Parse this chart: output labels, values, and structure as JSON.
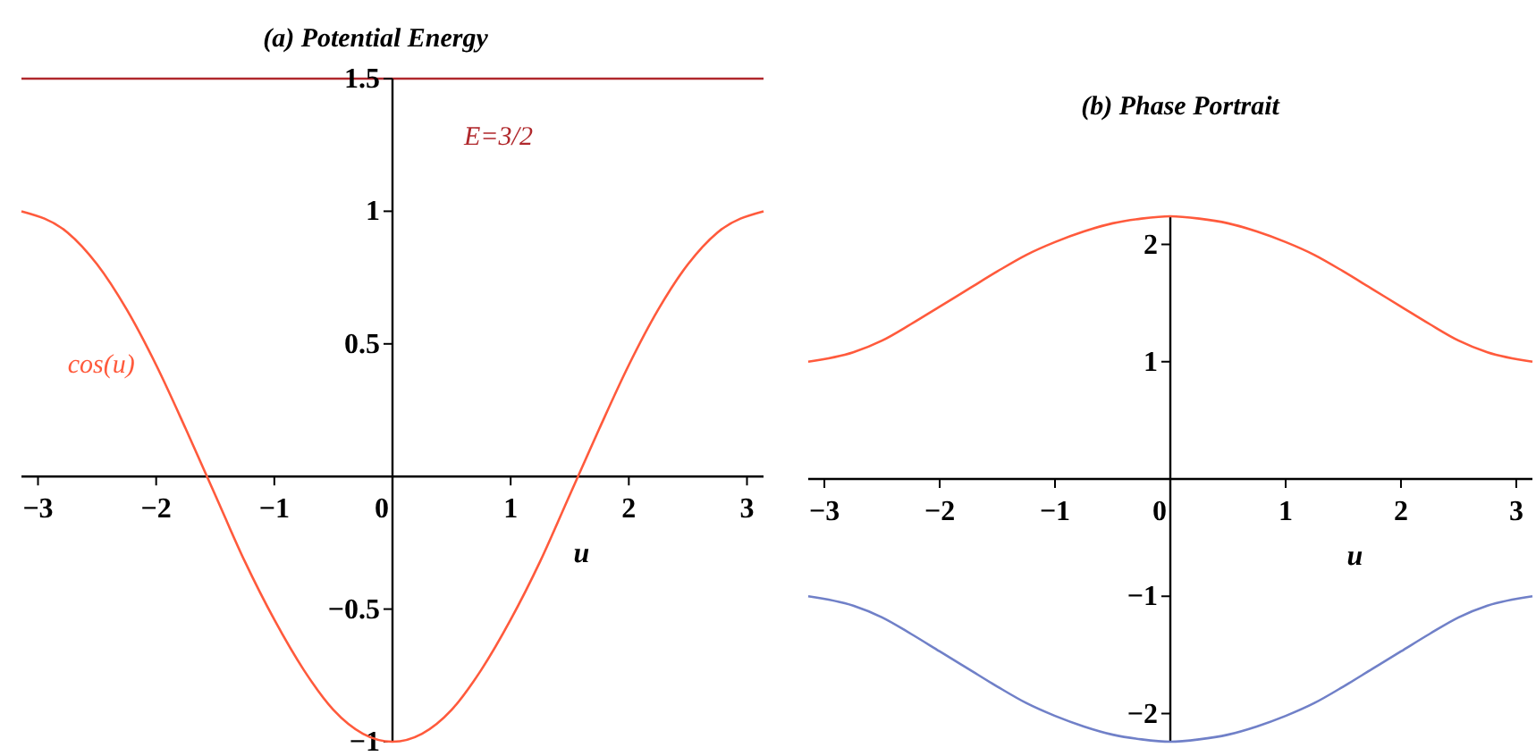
{
  "chart_data": [
    {
      "type": "line",
      "title": "(a)  Potential Energy",
      "xlabel": "u",
      "x": [
        -3.14,
        -2.75,
        -2.5,
        -2.25,
        -2,
        -1.75,
        -1.5,
        -1.25,
        -1,
        -0.75,
        -0.5,
        -0.25,
        0,
        0.25,
        0.5,
        0.75,
        1,
        1.25,
        1.5,
        1.75,
        2,
        2.25,
        2.5,
        2.75,
        3.14
      ],
      "series": [
        {
          "name": "cos(u)",
          "color": "#ff5a3c",
          "values": [
            1,
            0.92,
            0.8,
            0.63,
            0.42,
            0.18,
            -0.07,
            -0.32,
            -0.54,
            -0.73,
            -0.88,
            -0.97,
            -1,
            -0.97,
            -0.88,
            -0.73,
            -0.54,
            -0.32,
            -0.07,
            0.18,
            0.42,
            0.63,
            0.8,
            0.92,
            1
          ]
        }
      ],
      "xlim": [
        -3.14,
        3.14
      ],
      "ylim": [
        -1,
        1.5
      ],
      "xticks": [
        -3,
        -2,
        -1,
        0,
        1,
        2,
        3
      ],
      "yticks": [
        -1,
        -0.5,
        0.5,
        1,
        1.5
      ],
      "ref_lines": [
        {
          "axis": "y",
          "value": 1.5,
          "label": "E=3/2",
          "color": "#b0282c"
        }
      ]
    },
    {
      "type": "line",
      "title": "(b)  Phase Portrait",
      "xlabel": "u",
      "x": [
        -3.14,
        -2.75,
        -2.5,
        -2.25,
        -2,
        -1.75,
        -1.5,
        -1.25,
        -1,
        -0.75,
        -0.5,
        -0.25,
        0,
        0.25,
        0.5,
        0.75,
        1,
        1.25,
        1.5,
        1.75,
        2,
        2.25,
        2.5,
        2.75,
        3.14
      ],
      "series": [
        {
          "color": "#ff5a3c",
          "values": [
            1,
            1.08,
            1.18,
            1.32,
            1.47,
            1.62,
            1.77,
            1.91,
            2.02,
            2.11,
            2.18,
            2.22,
            2.24,
            2.22,
            2.18,
            2.11,
            2.02,
            1.91,
            1.77,
            1.62,
            1.47,
            1.32,
            1.18,
            1.08,
            1
          ]
        },
        {
          "color": "#7080c8",
          "values": [
            -1,
            -1.08,
            -1.18,
            -1.32,
            -1.47,
            -1.62,
            -1.77,
            -1.91,
            -2.02,
            -2.11,
            -2.18,
            -2.22,
            -2.24,
            -2.22,
            -2.18,
            -2.11,
            -2.02,
            -1.91,
            -1.77,
            -1.62,
            -1.47,
            -1.32,
            -1.18,
            -1.08,
            -1
          ]
        }
      ],
      "xlim": [
        -3.14,
        3.14
      ],
      "ylim": [
        -2.24,
        2.24
      ],
      "xticks": [
        -3,
        -2,
        -1,
        0,
        1,
        2,
        3
      ],
      "yticks": [
        -2,
        -1,
        1,
        2
      ]
    }
  ]
}
